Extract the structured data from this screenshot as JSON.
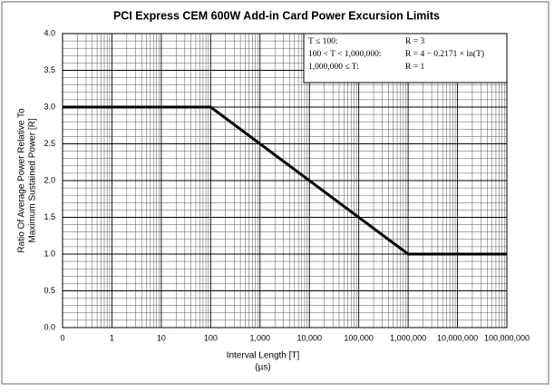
{
  "chart_data": {
    "type": "line",
    "title": "PCI Express CEM 600W Add-in Card Power Excursion Limits",
    "x_label": [
      "Interval Length  [T]",
      "(µs)"
    ],
    "y_label": [
      "Ratio Of Average Power Relative To",
      "Maximum Sustained Power  [R]"
    ],
    "x": [
      0.1,
      100,
      1000000,
      100000000
    ],
    "series": [
      {
        "color": "#000000",
        "values": [
          3,
          3,
          1,
          1
        ]
      }
    ],
    "log_x": true,
    "grid": true,
    "xlim": [
      0.1,
      100000000
    ],
    "xticks": [
      {
        "value": 0.1,
        "label": "0"
      },
      1,
      10,
      100,
      {
        "value": 1000,
        "label": "1,000"
      },
      {
        "value": 10000,
        "label": "10,000"
      },
      {
        "value": 100000,
        "label": "100,000"
      },
      {
        "value": 1000000,
        "label": "1,000,000"
      },
      {
        "value": 10000000,
        "label": "10,000,000"
      },
      {
        "value": 100000000,
        "label": "100,000,000"
      }
    ],
    "ylim": [
      0,
      4
    ],
    "yticks": [
      {
        "value": 0,
        "label": "0.0"
      },
      0.5,
      {
        "value": 1,
        "label": "1.0"
      },
      1.5,
      {
        "value": 2,
        "label": "2.0"
      },
      2.5,
      {
        "value": 3,
        "label": "3.0"
      },
      3.5,
      {
        "value": 4,
        "label": "4.0"
      }
    ],
    "annotations": [
      [
        "T ≤ 100:",
        "R = 3"
      ],
      [
        "100 < T < 1,000,000:",
        "R = 4 − 0.2171 × ln(T)"
      ],
      [
        "1,000,000 ≤ T:",
        "R = 1"
      ]
    ]
  }
}
